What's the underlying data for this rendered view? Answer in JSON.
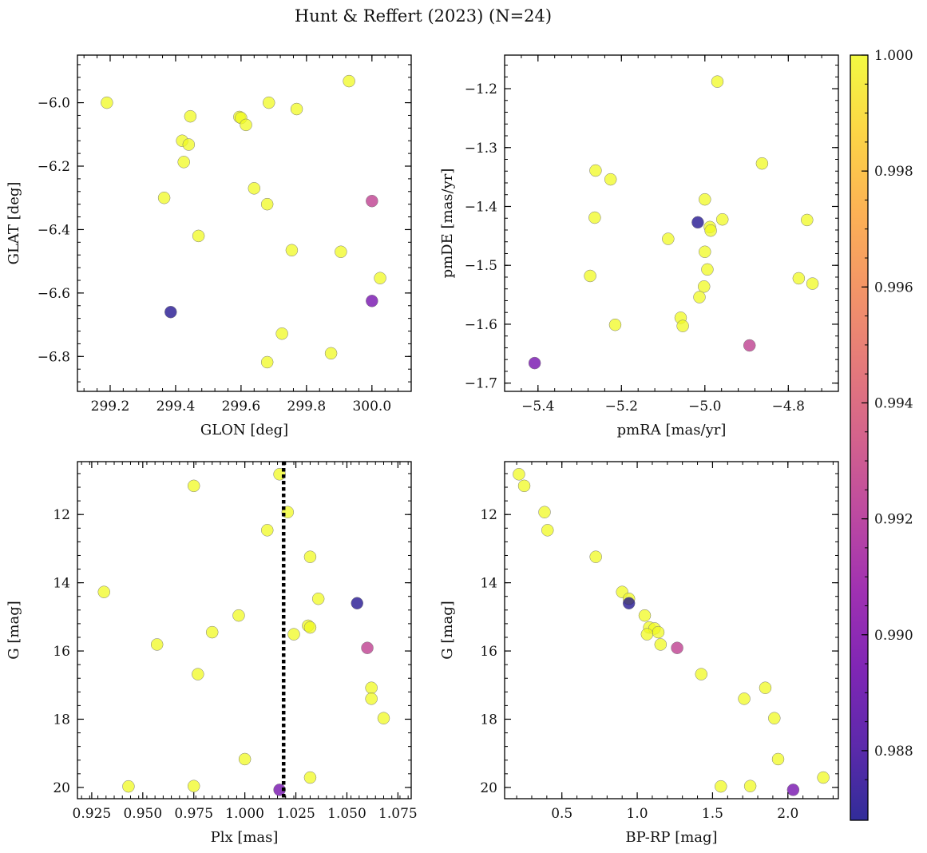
{
  "figure": {
    "title": "Hunt & Reffert (2023) (N=24)"
  },
  "colorbar": {
    "colormap": "plasma",
    "range": [
      0.9868,
      1.0
    ],
    "ticks": [
      "0.988",
      "0.990",
      "0.992",
      "0.994",
      "0.996",
      "0.998",
      "1.000"
    ],
    "tick_values": [
      0.988,
      0.99,
      0.992,
      0.994,
      0.996,
      0.998,
      1.0
    ]
  },
  "chart_data": [
    {
      "type": "scatter",
      "panel": "top-left",
      "xlabel": "GLON [deg]",
      "ylabel": "GLAT [deg]",
      "xlim": [
        299.1,
        300.12
      ],
      "ylim": [
        -6.91,
        -5.85
      ],
      "xticks": [
        299.2,
        299.4,
        299.6,
        299.8,
        300.0
      ],
      "xtick_labels": [
        "299.2",
        "299.4",
        "299.6",
        "299.8",
        "300.0"
      ],
      "yticks": [
        -6.8,
        -6.6,
        -6.4,
        -6.2,
        -6.0
      ],
      "ytick_labels": [
        "−6.8",
        "−6.6",
        "−6.4",
        "−6.2",
        "−6.0"
      ],
      "points": [
        {
          "x": 299.19,
          "y": -6.0,
          "c": 1.0
        },
        {
          "x": 299.445,
          "y": -6.043,
          "c": 1.0
        },
        {
          "x": 299.595,
          "y": -6.045,
          "c": 1.0
        },
        {
          "x": 299.6,
          "y": -6.048,
          "c": 1.0
        },
        {
          "x": 299.615,
          "y": -6.07,
          "c": 1.0
        },
        {
          "x": 299.685,
          "y": -6.0,
          "c": 1.0
        },
        {
          "x": 299.77,
          "y": -6.02,
          "c": 1.0
        },
        {
          "x": 299.93,
          "y": -5.932,
          "c": 1.0
        },
        {
          "x": 299.42,
          "y": -6.12,
          "c": 1.0
        },
        {
          "x": 299.44,
          "y": -6.132,
          "c": 1.0
        },
        {
          "x": 299.425,
          "y": -6.187,
          "c": 1.0
        },
        {
          "x": 299.365,
          "y": -6.3,
          "c": 1.0
        },
        {
          "x": 299.64,
          "y": -6.27,
          "c": 1.0
        },
        {
          "x": 299.68,
          "y": -6.32,
          "c": 1.0
        },
        {
          "x": 300.0,
          "y": -6.31,
          "c": 0.9925
        },
        {
          "x": 299.47,
          "y": -6.42,
          "c": 1.0
        },
        {
          "x": 299.755,
          "y": -6.465,
          "c": 1.0
        },
        {
          "x": 299.905,
          "y": -6.47,
          "c": 1.0
        },
        {
          "x": 300.025,
          "y": -6.553,
          "c": 1.0
        },
        {
          "x": 300.0,
          "y": -6.625,
          "c": 0.9895
        },
        {
          "x": 299.385,
          "y": -6.66,
          "c": 0.987
        },
        {
          "x": 299.725,
          "y": -6.728,
          "c": 1.0
        },
        {
          "x": 299.875,
          "y": -6.79,
          "c": 1.0
        },
        {
          "x": 299.68,
          "y": -6.818,
          "c": 1.0
        }
      ]
    },
    {
      "type": "scatter",
      "panel": "top-right",
      "xlabel": "pmRA [mas/yr]",
      "ylabel": "pmDE [mas/yr]",
      "xlim": [
        -5.48,
        -4.68
      ],
      "ylim": [
        -1.714,
        -1.143
      ],
      "xticks": [
        -5.4,
        -5.2,
        -5.0,
        -4.8
      ],
      "xtick_labels": [
        "−5.4",
        "−5.2",
        "−5.0",
        "−4.8"
      ],
      "yticks": [
        -1.7,
        -1.6,
        -1.5,
        -1.4,
        -1.3,
        -1.2
      ],
      "ytick_labels": [
        "−1.7",
        "−1.6",
        "−1.5",
        "−1.4",
        "−1.3",
        "−1.2"
      ],
      "points": [
        {
          "x": -4.97,
          "y": -1.188,
          "c": 1.0
        },
        {
          "x": -4.863,
          "y": -1.327,
          "c": 1.0
        },
        {
          "x": -5.262,
          "y": -1.339,
          "c": 1.0
        },
        {
          "x": -5.226,
          "y": -1.354,
          "c": 1.0
        },
        {
          "x": -5.0,
          "y": -1.388,
          "c": 1.0
        },
        {
          "x": -5.264,
          "y": -1.419,
          "c": 1.0
        },
        {
          "x": -4.958,
          "y": -1.422,
          "c": 1.0
        },
        {
          "x": -5.017,
          "y": -1.427,
          "c": 0.987
        },
        {
          "x": -4.755,
          "y": -1.423,
          "c": 1.0
        },
        {
          "x": -4.988,
          "y": -1.435,
          "c": 1.0
        },
        {
          "x": -4.986,
          "y": -1.441,
          "c": 1.0
        },
        {
          "x": -5.088,
          "y": -1.455,
          "c": 1.0
        },
        {
          "x": -5.0,
          "y": -1.477,
          "c": 1.0
        },
        {
          "x": -4.994,
          "y": -1.507,
          "c": 1.0
        },
        {
          "x": -5.275,
          "y": -1.518,
          "c": 1.0
        },
        {
          "x": -4.775,
          "y": -1.522,
          "c": 1.0
        },
        {
          "x": -4.742,
          "y": -1.531,
          "c": 1.0
        },
        {
          "x": -5.002,
          "y": -1.536,
          "c": 1.0
        },
        {
          "x": -5.013,
          "y": -1.554,
          "c": 1.0
        },
        {
          "x": -5.058,
          "y": -1.589,
          "c": 1.0
        },
        {
          "x": -5.215,
          "y": -1.601,
          "c": 1.0
        },
        {
          "x": -5.053,
          "y": -1.603,
          "c": 1.0
        },
        {
          "x": -4.893,
          "y": -1.636,
          "c": 0.9925
        },
        {
          "x": -5.408,
          "y": -1.666,
          "c": 0.9895
        }
      ]
    },
    {
      "type": "scatter",
      "panel": "bottom-left",
      "xlabel": "Plx [mas]",
      "ylabel": "G [mag]",
      "xlim": [
        0.918,
        1.0815
      ],
      "ylim": [
        20.33,
        10.45
      ],
      "y_inverted": true,
      "vline": {
        "x": 1.019,
        "style": "dotted",
        "color": "#000000"
      },
      "xticks": [
        0.925,
        0.95,
        0.975,
        1.0,
        1.025,
        1.05,
        1.075
      ],
      "xtick_labels": [
        "0.925",
        "0.950",
        "0.975",
        "1.000",
        "1.025",
        "1.050",
        "1.075"
      ],
      "yticks": [
        12,
        14,
        16,
        18,
        20
      ],
      "ytick_labels": [
        "12",
        "14",
        "16",
        "18",
        "20"
      ],
      "points": [
        {
          "x": 1.017,
          "y": 10.82,
          "c": 1.0
        },
        {
          "x": 0.975,
          "y": 11.16,
          "c": 1.0
        },
        {
          "x": 1.021,
          "y": 11.93,
          "c": 1.0
        },
        {
          "x": 1.011,
          "y": 12.46,
          "c": 1.0
        },
        {
          "x": 1.032,
          "y": 13.24,
          "c": 1.0
        },
        {
          "x": 0.931,
          "y": 14.27,
          "c": 1.0
        },
        {
          "x": 1.036,
          "y": 14.47,
          "c": 1.0
        },
        {
          "x": 1.055,
          "y": 14.6,
          "c": 0.987
        },
        {
          "x": 0.997,
          "y": 14.96,
          "c": 1.0
        },
        {
          "x": 1.031,
          "y": 15.26,
          "c": 1.0
        },
        {
          "x": 1.032,
          "y": 15.31,
          "c": 1.0
        },
        {
          "x": 0.984,
          "y": 15.45,
          "c": 1.0
        },
        {
          "x": 1.024,
          "y": 15.51,
          "c": 1.0
        },
        {
          "x": 0.957,
          "y": 15.81,
          "c": 1.0
        },
        {
          "x": 1.06,
          "y": 15.91,
          "c": 0.9925
        },
        {
          "x": 0.977,
          "y": 16.68,
          "c": 1.0
        },
        {
          "x": 1.062,
          "y": 17.08,
          "c": 1.0
        },
        {
          "x": 1.062,
          "y": 17.4,
          "c": 1.0
        },
        {
          "x": 1.068,
          "y": 17.97,
          "c": 1.0
        },
        {
          "x": 1.0,
          "y": 19.17,
          "c": 1.0
        },
        {
          "x": 1.032,
          "y": 19.71,
          "c": 1.0
        },
        {
          "x": 0.943,
          "y": 19.97,
          "c": 1.0
        },
        {
          "x": 0.975,
          "y": 19.96,
          "c": 1.0
        },
        {
          "x": 1.017,
          "y": 20.07,
          "c": 0.9895
        }
      ]
    },
    {
      "type": "scatter",
      "panel": "bottom-right",
      "xlabel": "BP-RP [mag]",
      "ylabel": "G [mag]",
      "xlim": [
        0.12,
        2.335
      ],
      "ylim": [
        20.33,
        10.45
      ],
      "y_inverted": true,
      "xticks": [
        0.5,
        1.0,
        1.5,
        2.0
      ],
      "xtick_labels": [
        "0.5",
        "1.0",
        "1.5",
        "2.0"
      ],
      "yticks": [
        12,
        14,
        16,
        18,
        20
      ],
      "ytick_labels": [
        "12",
        "14",
        "16",
        "18",
        "20"
      ],
      "points": [
        {
          "x": 0.215,
          "y": 10.82,
          "c": 1.0
        },
        {
          "x": 0.25,
          "y": 11.16,
          "c": 1.0
        },
        {
          "x": 0.385,
          "y": 11.93,
          "c": 1.0
        },
        {
          "x": 0.405,
          "y": 12.46,
          "c": 1.0
        },
        {
          "x": 0.725,
          "y": 13.24,
          "c": 1.0
        },
        {
          "x": 0.9,
          "y": 14.27,
          "c": 1.0
        },
        {
          "x": 0.945,
          "y": 14.47,
          "c": 1.0
        },
        {
          "x": 0.945,
          "y": 14.6,
          "c": 0.987
        },
        {
          "x": 1.05,
          "y": 14.96,
          "c": 1.0
        },
        {
          "x": 1.08,
          "y": 15.31,
          "c": 1.0
        },
        {
          "x": 1.115,
          "y": 15.34,
          "c": 1.0
        },
        {
          "x": 1.14,
          "y": 15.45,
          "c": 1.0
        },
        {
          "x": 1.065,
          "y": 15.51,
          "c": 1.0
        },
        {
          "x": 1.155,
          "y": 15.81,
          "c": 1.0
        },
        {
          "x": 1.265,
          "y": 15.91,
          "c": 0.9925
        },
        {
          "x": 1.425,
          "y": 16.68,
          "c": 1.0
        },
        {
          "x": 1.85,
          "y": 17.08,
          "c": 1.0
        },
        {
          "x": 1.71,
          "y": 17.4,
          "c": 1.0
        },
        {
          "x": 1.91,
          "y": 17.97,
          "c": 1.0
        },
        {
          "x": 1.935,
          "y": 19.17,
          "c": 1.0
        },
        {
          "x": 2.235,
          "y": 19.71,
          "c": 1.0
        },
        {
          "x": 1.555,
          "y": 19.97,
          "c": 1.0
        },
        {
          "x": 1.75,
          "y": 19.96,
          "c": 1.0
        },
        {
          "x": 2.035,
          "y": 20.07,
          "c": 0.9895
        }
      ]
    }
  ]
}
